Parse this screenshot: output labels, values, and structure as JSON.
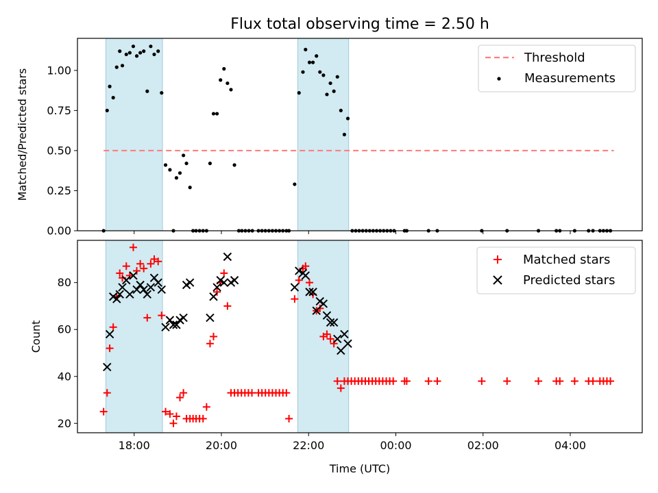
{
  "chart_data": [
    {
      "type": "scatter",
      "title": "Flux total observing time = 2.50 h",
      "ylabel": "Matched/Predicted stars",
      "xlabel": "",
      "xlim_hours": [
        16.7,
        29.65
      ],
      "ylim": [
        0,
        1.2
      ],
      "yticks": [
        0.0,
        0.25,
        0.5,
        0.75,
        1.0
      ],
      "ytick_labels": [
        "0.00",
        "0.25",
        "0.50",
        "0.75",
        "1.00"
      ],
      "xtick_labels_shown": false,
      "threshold": {
        "name": "Threshold",
        "value": 0.5,
        "x_start": 17.3,
        "x_end": 29.0,
        "color": "#ff7f7f"
      },
      "shaded_regions": [
        [
          17.35,
          18.65
        ],
        [
          21.75,
          22.92
        ]
      ],
      "shade_color": "#add8e6",
      "legend": {
        "position": "top-right",
        "entries": [
          "Threshold",
          "Measurements"
        ]
      },
      "series": [
        {
          "name": "Measurements",
          "color": "#000000",
          "marker": "dot",
          "points": [
            [
              17.3,
              0.0
            ],
            [
              17.38,
              0.75
            ],
            [
              17.44,
              0.9
            ],
            [
              17.52,
              0.83
            ],
            [
              17.6,
              1.02
            ],
            [
              17.67,
              1.12
            ],
            [
              17.73,
              1.03
            ],
            [
              17.82,
              1.1
            ],
            [
              17.9,
              1.11
            ],
            [
              17.98,
              1.15
            ],
            [
              18.06,
              1.09
            ],
            [
              18.14,
              1.11
            ],
            [
              18.22,
              1.12
            ],
            [
              18.3,
              0.87
            ],
            [
              18.38,
              1.15
            ],
            [
              18.46,
              1.1
            ],
            [
              18.55,
              1.12
            ],
            [
              18.63,
              0.86
            ],
            [
              18.72,
              0.41
            ],
            [
              18.82,
              0.38
            ],
            [
              18.9,
              0.0
            ],
            [
              18.97,
              0.33
            ],
            [
              19.05,
              0.36
            ],
            [
              19.13,
              0.47
            ],
            [
              19.2,
              0.42
            ],
            [
              19.28,
              0.27
            ],
            [
              19.35,
              0.0
            ],
            [
              19.42,
              0.0
            ],
            [
              19.5,
              0.0
            ],
            [
              19.58,
              0.0
            ],
            [
              19.66,
              0.0
            ],
            [
              19.74,
              0.42
            ],
            [
              19.82,
              0.73
            ],
            [
              19.9,
              0.73
            ],
            [
              19.98,
              0.94
            ],
            [
              20.06,
              1.01
            ],
            [
              20.14,
              0.92
            ],
            [
              20.22,
              0.88
            ],
            [
              20.3,
              0.41
            ],
            [
              20.4,
              0.0
            ],
            [
              20.47,
              0.0
            ],
            [
              20.55,
              0.0
            ],
            [
              20.63,
              0.0
            ],
            [
              20.71,
              0.0
            ],
            [
              20.85,
              0.0
            ],
            [
              20.93,
              0.0
            ],
            [
              21.01,
              0.0
            ],
            [
              21.09,
              0.0
            ],
            [
              21.17,
              0.0
            ],
            [
              21.25,
              0.0
            ],
            [
              21.33,
              0.0
            ],
            [
              21.41,
              0.0
            ],
            [
              21.49,
              0.0
            ],
            [
              21.55,
              0.0
            ],
            [
              21.68,
              0.29
            ],
            [
              21.78,
              0.86
            ],
            [
              21.87,
              0.99
            ],
            [
              21.93,
              1.13
            ],
            [
              22.02,
              1.05
            ],
            [
              22.1,
              1.05
            ],
            [
              22.18,
              1.09
            ],
            [
              22.26,
              0.99
            ],
            [
              22.34,
              0.97
            ],
            [
              22.42,
              0.85
            ],
            [
              22.5,
              0.92
            ],
            [
              22.58,
              0.87
            ],
            [
              22.66,
              0.96
            ],
            [
              22.74,
              0.75
            ],
            [
              22.82,
              0.6
            ],
            [
              22.9,
              0.7
            ],
            [
              23.0,
              0.0
            ],
            [
              23.08,
              0.0
            ],
            [
              23.16,
              0.0
            ],
            [
              23.24,
              0.0
            ],
            [
              23.32,
              0.0
            ],
            [
              23.4,
              0.0
            ],
            [
              23.48,
              0.0
            ],
            [
              23.56,
              0.0
            ],
            [
              23.64,
              0.0
            ],
            [
              23.72,
              0.0
            ],
            [
              23.8,
              0.0
            ],
            [
              23.88,
              0.0
            ],
            [
              23.96,
              0.0
            ],
            [
              24.2,
              0.0
            ],
            [
              24.25,
              0.0
            ],
            [
              24.75,
              0.0
            ],
            [
              24.95,
              0.0
            ],
            [
              25.97,
              0.0
            ],
            [
              26.55,
              0.0
            ],
            [
              27.27,
              0.0
            ],
            [
              27.68,
              0.0
            ],
            [
              27.76,
              0.0
            ],
            [
              28.1,
              0.0
            ],
            [
              28.42,
              0.0
            ],
            [
              28.52,
              0.0
            ],
            [
              28.68,
              0.0
            ],
            [
              28.76,
              0.0
            ],
            [
              28.84,
              0.0
            ],
            [
              28.92,
              0.0
            ]
          ]
        }
      ]
    },
    {
      "type": "scatter",
      "title": "",
      "xlabel": "Time (UTC)",
      "ylabel": "Count",
      "xlim_hours": [
        16.7,
        29.65
      ],
      "ylim": [
        16,
        98
      ],
      "yticks": [
        20,
        40,
        60,
        80
      ],
      "ytick_labels": [
        "20",
        "40",
        "60",
        "80"
      ],
      "xticks_hours": [
        18,
        20,
        22,
        24,
        26,
        28
      ],
      "xtick_labels": [
        "18:00",
        "20:00",
        "22:00",
        "00:00",
        "02:00",
        "04:00"
      ],
      "shaded_regions": [
        [
          17.35,
          18.65
        ],
        [
          21.75,
          22.92
        ]
      ],
      "shade_color": "#add8e6",
      "legend": {
        "position": "top-right",
        "entries": [
          "Matched stars",
          "Predicted stars"
        ]
      },
      "series": [
        {
          "name": "Matched stars",
          "color": "#ff0000",
          "marker": "plus",
          "points": [
            [
              17.3,
              25
            ],
            [
              17.38,
              33
            ],
            [
              17.44,
              52
            ],
            [
              17.52,
              61
            ],
            [
              17.6,
              74
            ],
            [
              17.67,
              84
            ],
            [
              17.73,
              82
            ],
            [
              17.82,
              87
            ],
            [
              17.9,
              83
            ],
            [
              17.98,
              95
            ],
            [
              18.06,
              85
            ],
            [
              18.14,
              88
            ],
            [
              18.22,
              86
            ],
            [
              18.3,
              65
            ],
            [
              18.38,
              88
            ],
            [
              18.46,
              90
            ],
            [
              18.55,
              89
            ],
            [
              18.63,
              66
            ],
            [
              18.72,
              25
            ],
            [
              18.82,
              24
            ],
            [
              18.9,
              20
            ],
            [
              18.97,
              23
            ],
            [
              19.05,
              31
            ],
            [
              19.13,
              33
            ],
            [
              19.2,
              22
            ],
            [
              19.28,
              22
            ],
            [
              19.35,
              22
            ],
            [
              19.42,
              22
            ],
            [
              19.5,
              22
            ],
            [
              19.58,
              22
            ],
            [
              19.66,
              27
            ],
            [
              19.74,
              54
            ],
            [
              19.82,
              57
            ],
            [
              19.9,
              76
            ],
            [
              19.98,
              80
            ],
            [
              20.06,
              84
            ],
            [
              20.14,
              70
            ],
            [
              20.22,
              33
            ],
            [
              20.3,
              33
            ],
            [
              20.38,
              33
            ],
            [
              20.46,
              33
            ],
            [
              20.54,
              33
            ],
            [
              20.62,
              33
            ],
            [
              20.7,
              33
            ],
            [
              20.85,
              33
            ],
            [
              20.93,
              33
            ],
            [
              21.01,
              33
            ],
            [
              21.09,
              33
            ],
            [
              21.17,
              33
            ],
            [
              21.25,
              33
            ],
            [
              21.33,
              33
            ],
            [
              21.41,
              33
            ],
            [
              21.49,
              33
            ],
            [
              21.55,
              22
            ],
            [
              21.68,
              73
            ],
            [
              21.78,
              81
            ],
            [
              21.87,
              86
            ],
            [
              21.93,
              87
            ],
            [
              22.02,
              80
            ],
            [
              22.1,
              75
            ],
            [
              22.18,
              68
            ],
            [
              22.26,
              69
            ],
            [
              22.34,
              57
            ],
            [
              22.42,
              58
            ],
            [
              22.5,
              56
            ],
            [
              22.58,
              54
            ],
            [
              22.66,
              38
            ],
            [
              22.74,
              35
            ],
            [
              22.82,
              38
            ],
            [
              22.9,
              38
            ],
            [
              22.98,
              38
            ],
            [
              23.06,
              38
            ],
            [
              23.14,
              38
            ],
            [
              23.22,
              38
            ],
            [
              23.3,
              38
            ],
            [
              23.38,
              38
            ],
            [
              23.46,
              38
            ],
            [
              23.54,
              38
            ],
            [
              23.62,
              38
            ],
            [
              23.7,
              38
            ],
            [
              23.78,
              38
            ],
            [
              23.86,
              38
            ],
            [
              23.94,
              38
            ],
            [
              24.2,
              38
            ],
            [
              24.25,
              38
            ],
            [
              24.75,
              38
            ],
            [
              24.95,
              38
            ],
            [
              25.97,
              38
            ],
            [
              26.55,
              38
            ],
            [
              27.27,
              38
            ],
            [
              27.68,
              38
            ],
            [
              27.76,
              38
            ],
            [
              28.1,
              38
            ],
            [
              28.42,
              38
            ],
            [
              28.52,
              38
            ],
            [
              28.68,
              38
            ],
            [
              28.76,
              38
            ],
            [
              28.84,
              38
            ],
            [
              28.92,
              38
            ]
          ]
        },
        {
          "name": "Predicted stars",
          "color": "#000000",
          "marker": "x",
          "points": [
            [
              17.38,
              44
            ],
            [
              17.44,
              58
            ],
            [
              17.52,
              74
            ],
            [
              17.6,
              73
            ],
            [
              17.67,
              75
            ],
            [
              17.73,
              78
            ],
            [
              17.82,
              81
            ],
            [
              17.9,
              75
            ],
            [
              17.98,
              83
            ],
            [
              18.06,
              77
            ],
            [
              18.14,
              79
            ],
            [
              18.22,
              77
            ],
            [
              18.3,
              75
            ],
            [
              18.38,
              78
            ],
            [
              18.46,
              82
            ],
            [
              18.55,
              80
            ],
            [
              18.63,
              77
            ],
            [
              18.72,
              61
            ],
            [
              18.82,
              64
            ],
            [
              18.9,
              62
            ],
            [
              18.97,
              62
            ],
            [
              19.05,
              64
            ],
            [
              19.13,
              65
            ],
            [
              19.2,
              79
            ],
            [
              19.28,
              80
            ],
            [
              19.74,
              65
            ],
            [
              19.82,
              74
            ],
            [
              19.9,
              78
            ],
            [
              19.98,
              81
            ],
            [
              20.06,
              80
            ],
            [
              20.14,
              91
            ],
            [
              20.22,
              80
            ],
            [
              20.3,
              81
            ],
            [
              21.68,
              78
            ],
            [
              21.78,
              85
            ],
            [
              21.87,
              84
            ],
            [
              21.93,
              83
            ],
            [
              22.02,
              76
            ],
            [
              22.1,
              76
            ],
            [
              22.18,
              68
            ],
            [
              22.26,
              72
            ],
            [
              22.34,
              71
            ],
            [
              22.42,
              66
            ],
            [
              22.5,
              63
            ],
            [
              22.58,
              63
            ],
            [
              22.66,
              56
            ],
            [
              22.74,
              51
            ],
            [
              22.82,
              58
            ],
            [
              22.9,
              54
            ]
          ]
        }
      ]
    }
  ]
}
